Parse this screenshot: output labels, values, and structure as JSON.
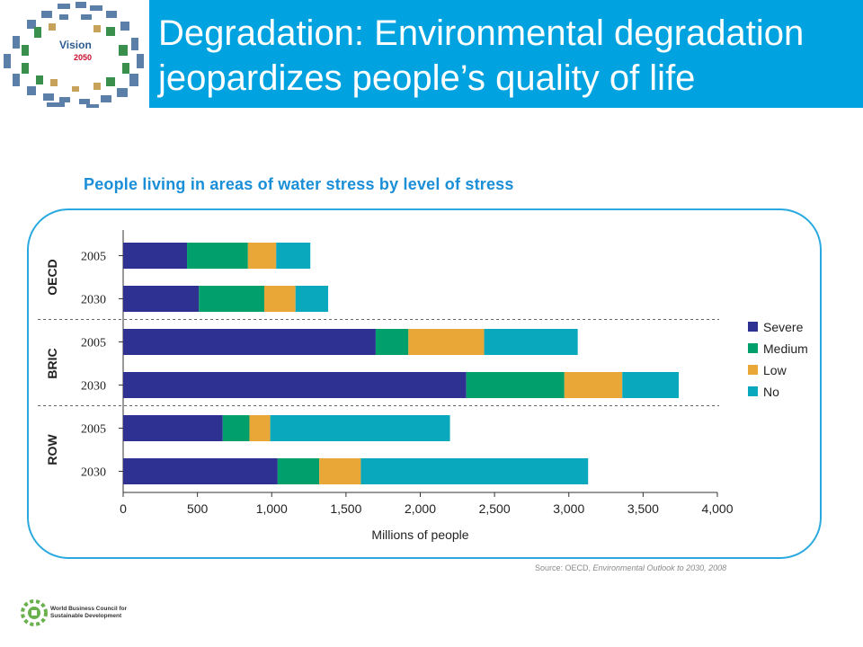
{
  "header": {
    "title_line1": "Degradation: Environmental degradation",
    "title_line2": "jeopardizes people’s quality of life",
    "band_color": "#00a3e0"
  },
  "logo": {
    "word": "Vision",
    "year": "2050",
    "icon": "vision-2050-collage-logo"
  },
  "chart_data": {
    "type": "bar",
    "orientation": "horizontal",
    "stacked": true,
    "title": "People living in areas of water stress by level of stress",
    "xlabel": "Millions of people",
    "ylabel": "",
    "xlim": [
      0,
      4000
    ],
    "x_ticks": [
      "0",
      "500",
      "1,000",
      "1,500",
      "2,000",
      "2,500",
      "3,000",
      "3,500",
      "4,000"
    ],
    "groups": [
      {
        "name": "OECD",
        "rows": [
          "2005",
          "2030"
        ]
      },
      {
        "name": "BRIC",
        "rows": [
          "2005",
          "2030"
        ]
      },
      {
        "name": "ROW",
        "rows": [
          "2005",
          "2030"
        ]
      }
    ],
    "categories": [
      "OECD 2005",
      "OECD 2030",
      "BRIC 2005",
      "BRIC 2030",
      "ROW 2005",
      "ROW 2030"
    ],
    "series": [
      {
        "name": "Severe",
        "color": "#2e3192",
        "values": [
          430,
          510,
          1700,
          2310,
          670,
          1040
        ]
      },
      {
        "name": "Medium",
        "color": "#009f6b",
        "values": [
          410,
          440,
          220,
          660,
          180,
          280
        ]
      },
      {
        "name": "Low",
        "color": "#e8a736",
        "values": [
          190,
          210,
          510,
          390,
          140,
          280
        ]
      },
      {
        "name": "No",
        "color": "#0aa8bd",
        "values": [
          230,
          220,
          630,
          380,
          1210,
          1530
        ]
      }
    ],
    "legend": {
      "placement": "right"
    },
    "grid": false
  },
  "source": {
    "prefix": "Source: OECD, ",
    "italic": "Environmental Outlook to 2030, 2008"
  },
  "footer": {
    "org_line1": "World Business Council for",
    "org_line2": "Sustainable Development"
  }
}
